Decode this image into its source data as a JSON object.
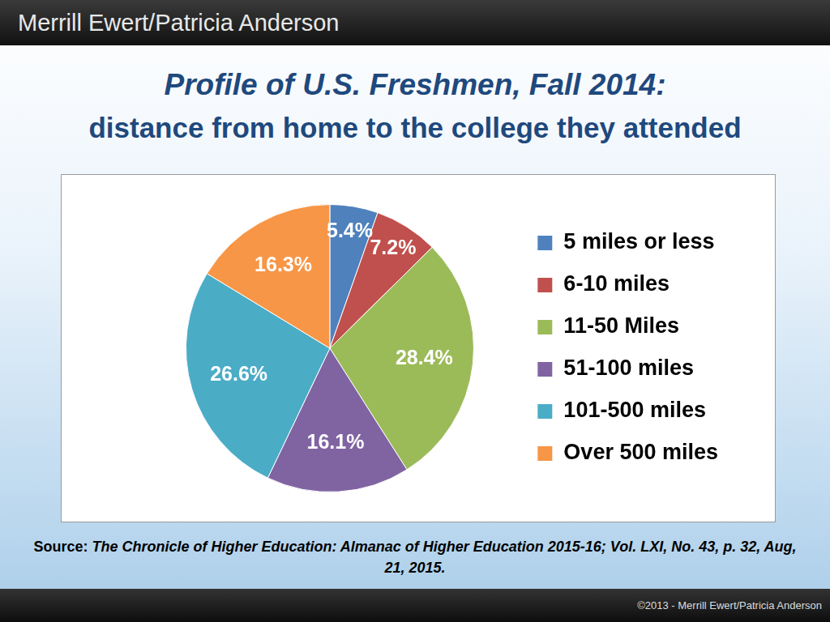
{
  "header": "Merrill Ewert/Patricia Anderson",
  "chart_data": {
    "type": "pie",
    "title": "Profile of U.S. Freshmen, Fall 2014:",
    "subtitle": "distance from home to the college they attended",
    "categories": [
      "5 miles or less",
      "6-10 miles",
      "11-50 Miles",
      "51-100 miles",
      "101-500 miles",
      "Over 500 miles"
    ],
    "values": [
      5.4,
      7.2,
      28.4,
      16.1,
      26.6,
      16.3
    ],
    "value_labels": [
      "5.4%",
      "7.2%",
      "28.4%",
      "16.1%",
      "26.6%",
      "16.3%"
    ],
    "colors": [
      "#4f81bd",
      "#c0504d",
      "#9bbb59",
      "#8064a2",
      "#4bacc6",
      "#f79646"
    ],
    "data_labels": true,
    "legend": "right"
  },
  "source": {
    "label": "Source:",
    "text": "The Chronicle of Higher Education: Almanac of Higher Education 2015-16; Vol. LXI, No. 43, p. 32, Aug, 21, 2015."
  },
  "footer": "©2013 - Merrill Ewert/Patricia Anderson"
}
